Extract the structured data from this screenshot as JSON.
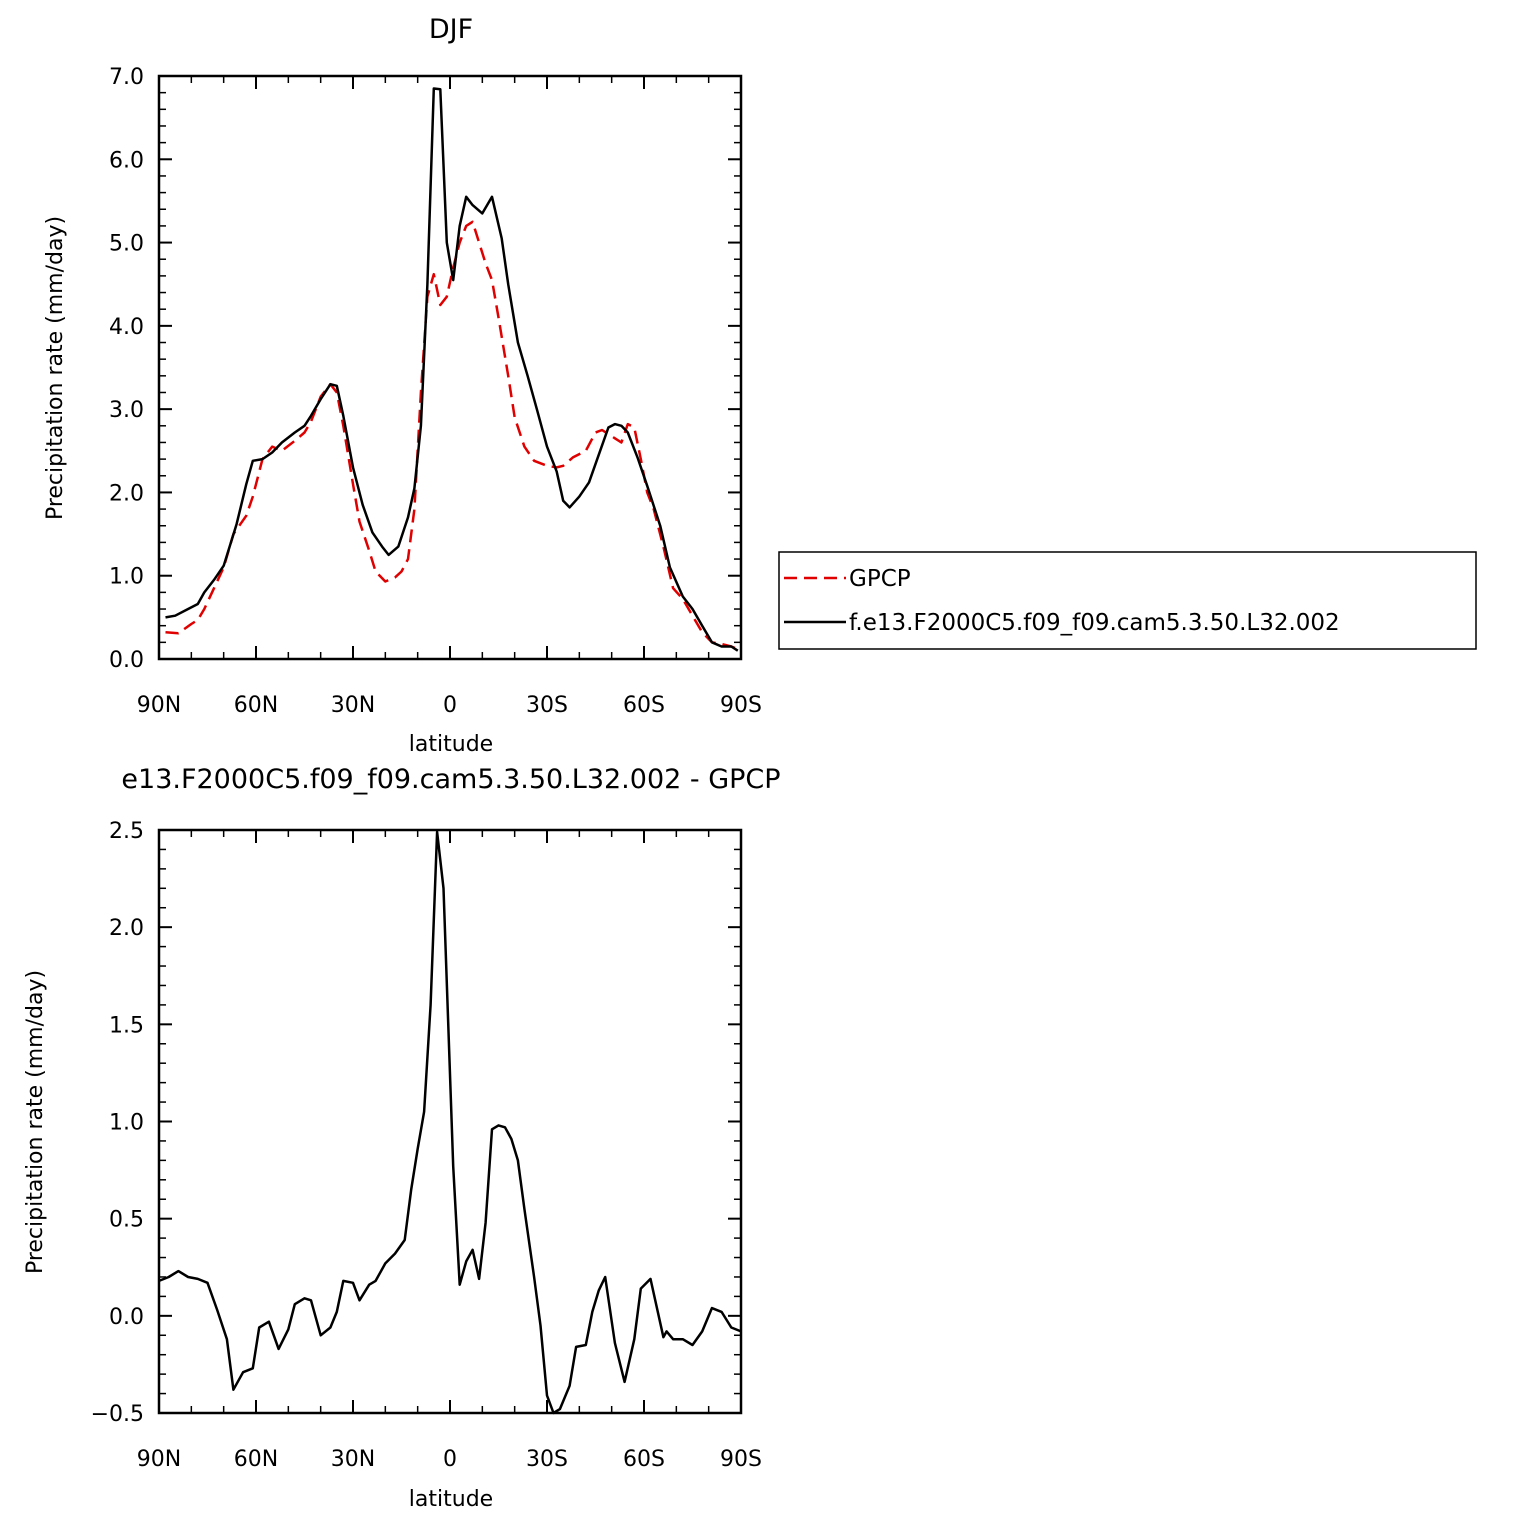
{
  "chart_data": [
    {
      "type": "line",
      "title": "DJF",
      "xlabel": "latitude",
      "ylabel": "Precipitation rate (mm/day)",
      "x_tick_labels": [
        "90N",
        "60N",
        "30N",
        "0",
        "30S",
        "60S",
        "90S"
      ],
      "x_ticks": [
        90,
        60,
        30,
        0,
        -30,
        -60,
        -90
      ],
      "xlim": [
        90,
        -90
      ],
      "ylim": [
        0,
        7
      ],
      "y_tick_labels": [
        "0.0",
        "1.0",
        "2.0",
        "3.0",
        "4.0",
        "5.0",
        "6.0",
        "7.0"
      ],
      "y_ticks": [
        0,
        1,
        2,
        3,
        4,
        5,
        6,
        7
      ],
      "legend_position": "right",
      "series": [
        {
          "name": "GPCP",
          "color": "#e00000",
          "dash": "dashed",
          "x": [
            88,
            84,
            80,
            78,
            76,
            73,
            70,
            67,
            63,
            61,
            58,
            55,
            52,
            48,
            45,
            43,
            40,
            37,
            35,
            33,
            30,
            28,
            25,
            23,
            20,
            17,
            15,
            13,
            11,
            9,
            7,
            5,
            3,
            1,
            -1,
            -3,
            -5,
            -7,
            -9,
            -11,
            -13,
            -15,
            -18,
            -20,
            -23,
            -26,
            -30,
            -33,
            -35,
            -38,
            -42,
            -45,
            -47,
            -49,
            -51,
            -53,
            -55,
            -57,
            -59,
            -61,
            -63,
            -66,
            -69,
            -72,
            -75,
            -78,
            -81,
            -84,
            -87,
            -89
          ],
          "y": [
            0.32,
            0.31,
            0.42,
            0.47,
            0.6,
            0.85,
            1.1,
            1.5,
            1.72,
            1.95,
            2.4,
            2.55,
            2.5,
            2.62,
            2.72,
            2.85,
            3.15,
            3.3,
            3.2,
            2.8,
            2.1,
            1.65,
            1.3,
            1.05,
            0.93,
            0.98,
            1.05,
            1.2,
            1.8,
            3.2,
            4.35,
            4.62,
            4.25,
            4.35,
            4.7,
            5.0,
            5.2,
            5.25,
            5.0,
            4.75,
            4.55,
            4.1,
            3.4,
            2.9,
            2.55,
            2.38,
            2.32,
            2.3,
            2.32,
            2.42,
            2.5,
            2.72,
            2.75,
            2.7,
            2.65,
            2.6,
            2.82,
            2.78,
            2.4,
            2.0,
            1.8,
            1.35,
            0.85,
            0.72,
            0.52,
            0.32,
            0.2,
            0.18,
            0.15,
            0.12
          ]
        },
        {
          "name": "f.e13.F2000C5.f09_f09.cam5.3.50.L32.002",
          "color": "#000000",
          "dash": "solid",
          "x": [
            88,
            85,
            81,
            78,
            76,
            73,
            70,
            66,
            63,
            61,
            58,
            55,
            52,
            48,
            45,
            43,
            40,
            37,
            35,
            33,
            30,
            27,
            24,
            21,
            19,
            16,
            13,
            11,
            9,
            7,
            5,
            3,
            1,
            -1,
            -3,
            -5,
            -7,
            -10,
            -13,
            -16,
            -18,
            -21,
            -24,
            -27,
            -30,
            -33,
            -35,
            -37,
            -40,
            -43,
            -46,
            -49,
            -51,
            -53,
            -55,
            -58,
            -61,
            -65,
            -68,
            -72,
            -75,
            -78,
            -81,
            -84,
            -87,
            -89
          ],
          "y": [
            0.5,
            0.52,
            0.6,
            0.66,
            0.8,
            0.95,
            1.12,
            1.62,
            2.1,
            2.38,
            2.4,
            2.48,
            2.6,
            2.72,
            2.8,
            2.92,
            3.12,
            3.3,
            3.28,
            2.92,
            2.3,
            1.85,
            1.52,
            1.35,
            1.25,
            1.35,
            1.7,
            2.05,
            2.8,
            4.5,
            6.85,
            6.84,
            5.0,
            4.55,
            5.2,
            5.55,
            5.45,
            5.35,
            5.55,
            5.05,
            4.5,
            3.8,
            3.4,
            2.98,
            2.55,
            2.25,
            1.9,
            1.82,
            1.95,
            2.12,
            2.45,
            2.78,
            2.82,
            2.8,
            2.72,
            2.42,
            2.08,
            1.6,
            1.1,
            0.75,
            0.6,
            0.4,
            0.2,
            0.15,
            0.15,
            0.1
          ]
        }
      ]
    },
    {
      "type": "line",
      "title": "e13.F2000C5.f09_f09.cam5.3.50.L32.002 - GPCP",
      "xlabel": "latitude",
      "ylabel": "Precipitation rate (mm/day)",
      "x_tick_labels": [
        "90N",
        "60N",
        "30N",
        "0",
        "30S",
        "60S",
        "90S"
      ],
      "x_ticks": [
        90,
        60,
        30,
        0,
        -30,
        -60,
        -90
      ],
      "xlim": [
        90,
        -90
      ],
      "ylim": [
        -0.5,
        2.5
      ],
      "y_tick_labels": [
        "−0.5",
        "0.0",
        "0.5",
        "1.0",
        "1.5",
        "2.0",
        "2.5"
      ],
      "y_ticks": [
        -0.5,
        0,
        0.5,
        1.0,
        1.5,
        2.0,
        2.5
      ],
      "series": [
        {
          "name": "",
          "color": "#000000",
          "dash": "solid",
          "x": [
            90,
            87,
            84,
            81,
            78,
            75,
            72,
            69,
            67,
            64,
            61,
            59,
            56,
            53,
            50,
            48,
            45,
            43,
            40,
            37,
            35,
            33,
            30,
            28,
            25,
            23,
            20,
            17,
            14,
            12,
            10,
            8,
            6,
            4,
            2,
            -1,
            -3,
            -5,
            -7,
            -9,
            -11,
            -13,
            -15,
            -17,
            -19,
            -21,
            -23,
            -26,
            -28,
            -30,
            -32,
            -34,
            -37,
            -39,
            -42,
            -44,
            -46,
            -48,
            -51,
            -54,
            -57,
            -59,
            -62,
            -66,
            -67,
            -69,
            -72,
            -75,
            -78,
            -81,
            -84,
            -87,
            -90
          ],
          "y": [
            0.18,
            0.2,
            0.23,
            0.2,
            0.19,
            0.17,
            0.03,
            -0.12,
            -0.38,
            -0.29,
            -0.27,
            -0.06,
            -0.03,
            -0.17,
            -0.07,
            0.06,
            0.09,
            0.08,
            -0.1,
            -0.06,
            0.02,
            0.18,
            0.17,
            0.08,
            0.16,
            0.18,
            0.27,
            0.32,
            0.39,
            0.65,
            0.86,
            1.05,
            1.6,
            2.49,
            2.2,
            0.77,
            0.16,
            0.28,
            0.34,
            0.19,
            0.48,
            0.96,
            0.98,
            0.97,
            0.91,
            0.8,
            0.55,
            0.2,
            -0.05,
            -0.41,
            -0.5,
            -0.48,
            -0.36,
            -0.16,
            -0.15,
            0.02,
            0.13,
            0.2,
            -0.14,
            -0.34,
            -0.12,
            0.14,
            0.19,
            -0.11,
            -0.08,
            -0.12,
            -0.12,
            -0.15,
            -0.08,
            0.04,
            0.02,
            -0.06,
            -0.08
          ]
        }
      ]
    }
  ]
}
